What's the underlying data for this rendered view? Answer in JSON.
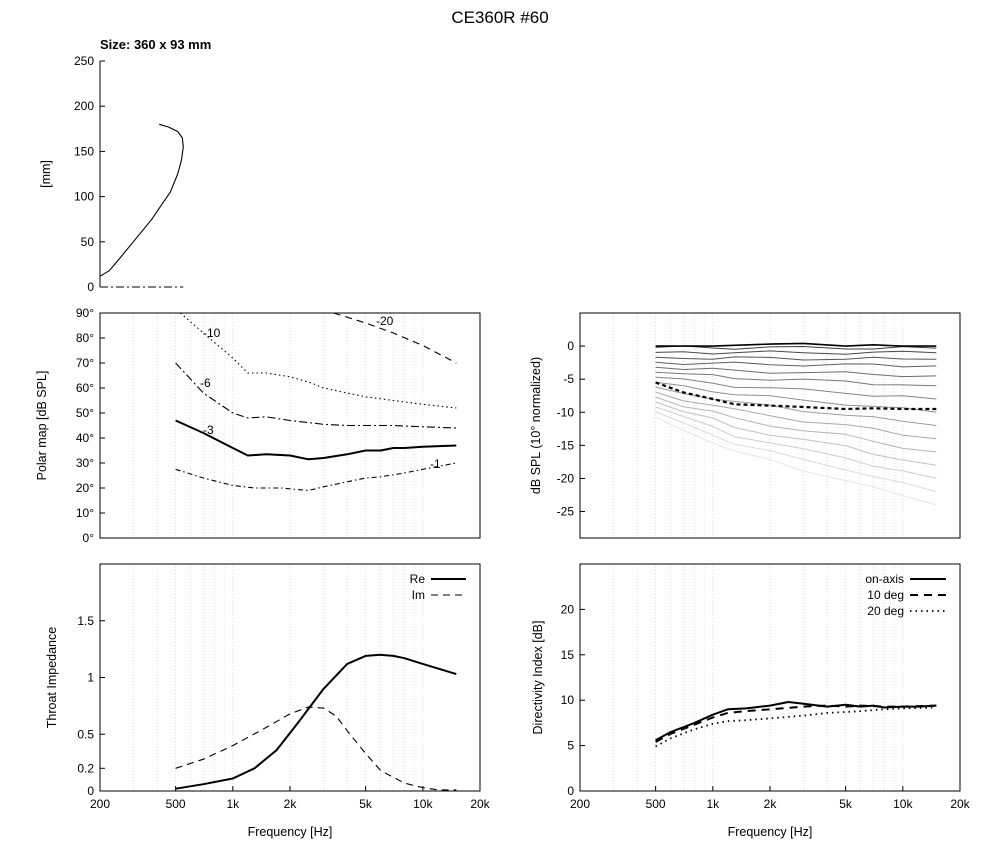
{
  "page": {
    "title": "CE360R #60"
  },
  "chart_data": [
    {
      "id": "profile",
      "type": "line",
      "subtitle": "Size: 360 x 93 mm",
      "xlabel": "",
      "ylabel": "[mm]",
      "ylim": [
        0,
        250
      ],
      "yticks": [
        0,
        50,
        100,
        150,
        200,
        250
      ],
      "series": [
        {
          "style": "solid",
          "x": [
            0,
            5,
            10,
            16,
            22,
            28,
            33,
            38,
            42,
            44,
            45,
            44.5,
            42,
            37,
            32
          ],
          "y": [
            12,
            18,
            30,
            45,
            60,
            75,
            90,
            105,
            125,
            140,
            155,
            165,
            172,
            177,
            180
          ]
        },
        {
          "style": "dashdot",
          "x": [
            0,
            45
          ],
          "y": [
            0,
            0
          ]
        }
      ]
    },
    {
      "id": "polar-map",
      "type": "line",
      "xscale": "log",
      "xlim": [
        200,
        20000
      ],
      "ylim": [
        0,
        90
      ],
      "ylabel": "Polar map [dB SPL]",
      "ytick_labels": [
        "0°",
        "10°",
        "20°",
        "30°",
        "40°",
        "50°",
        "60°",
        "70°",
        "80°",
        "90°"
      ],
      "series": [
        {
          "label": "-1",
          "style": "dashdot2",
          "x": [
            500,
            700,
            1000,
            1300,
            1800,
            2500,
            3000,
            4000,
            5000,
            6000,
            8000,
            10000,
            15000
          ],
          "y": [
            27.5,
            24,
            21,
            20,
            20,
            19,
            20.5,
            22.5,
            24,
            24.5,
            26,
            27.5,
            30
          ]
        },
        {
          "label": "-3",
          "style": "solid",
          "x": [
            500,
            700,
            1000,
            1200,
            1500,
            2000,
            2500,
            3000,
            4000,
            5000,
            6000,
            7000,
            8000,
            10000,
            15000
          ],
          "y": [
            47,
            42,
            36,
            33,
            33.5,
            33,
            31.5,
            32,
            33.5,
            35,
            35,
            36,
            36,
            36.5,
            37
          ]
        },
        {
          "label": "-6",
          "style": "dashdot",
          "x": [
            500,
            700,
            1000,
            1200,
            1500,
            2000,
            3000,
            4000,
            5000,
            7000,
            10000,
            15000
          ],
          "y": [
            70,
            58,
            50,
            48,
            48.5,
            47,
            45.5,
            45,
            45,
            45,
            44.5,
            44
          ]
        },
        {
          "label": "-10",
          "style": "dotted",
          "x": [
            530,
            700,
            1000,
            1200,
            1500,
            2000,
            2600,
            3000,
            4000,
            5000,
            7000,
            10000,
            15000
          ],
          "y": [
            90,
            82,
            72,
            66,
            66,
            64.5,
            62,
            60,
            58,
            56.5,
            55,
            53.5,
            52
          ]
        },
        {
          "label": "-20",
          "style": "dashed",
          "x": [
            3400,
            5000,
            7000,
            10000,
            15000
          ],
          "y": [
            90,
            86,
            82,
            77,
            70
          ]
        }
      ]
    },
    {
      "id": "normalized-spl",
      "type": "line",
      "xscale": "log",
      "xlim": [
        200,
        20000
      ],
      "ylim": [
        -29,
        5
      ],
      "ylabel": "dB SPL (10° normalized)",
      "yticks": [
        0,
        -5,
        -10,
        -15,
        -20,
        -25
      ],
      "series": [
        {
          "style": "solid",
          "x": [
            500,
            1000,
            2000,
            3000,
            5000,
            7000,
            10000,
            15000
          ],
          "y": [
            0,
            0,
            0.3,
            0.4,
            0,
            0.2,
            0,
            0
          ]
        },
        {
          "style": "dashed",
          "x": [
            500,
            700,
            1000,
            1300,
            2000,
            3000,
            5000,
            7000,
            10000,
            15000
          ],
          "y": [
            -5.5,
            -7,
            -8,
            -8.8,
            -9,
            -9.2,
            -9.5,
            -9.4,
            -9.5,
            -9.5
          ]
        }
      ],
      "gray_curves_end_db": [
        -0.3,
        -1,
        -2,
        -3,
        -4.5,
        -6,
        -8,
        -10,
        -12,
        -14,
        -16,
        -18,
        -20,
        -22,
        -24
      ]
    },
    {
      "id": "throat-impedance",
      "type": "line",
      "xscale": "log",
      "xlim": [
        200,
        20000
      ],
      "ylim": [
        0,
        2
      ],
      "ylabel": "Throat Impedance",
      "xlabel": "Frequency [Hz]",
      "yticks": [
        0,
        0.2,
        0.5,
        1,
        1.5
      ],
      "ytick_labels": [
        "0",
        "0.2",
        "0.5",
        "1",
        "1.5"
      ],
      "xtick_labels": [
        "200",
        "500",
        "1k",
        "2k",
        "5k",
        "10k",
        "20k"
      ],
      "legend": "top-right",
      "series": [
        {
          "name": "Re",
          "style": "solid",
          "x": [
            500,
            700,
            1000,
            1300,
            1700,
            2200,
            3000,
            4000,
            5000,
            6000,
            7000,
            8000,
            10000,
            12000,
            15000
          ],
          "y": [
            0.02,
            0.06,
            0.11,
            0.2,
            0.36,
            0.6,
            0.9,
            1.12,
            1.19,
            1.2,
            1.19,
            1.17,
            1.12,
            1.08,
            1.03
          ]
        },
        {
          "name": "Im",
          "style": "dashed",
          "x": [
            500,
            700,
            1000,
            1500,
            2000,
            2500,
            3000,
            3500,
            4000,
            5000,
            6000,
            8000,
            10000,
            12000,
            15000
          ],
          "y": [
            0.2,
            0.28,
            0.4,
            0.56,
            0.68,
            0.74,
            0.73,
            0.66,
            0.53,
            0.33,
            0.18,
            0.07,
            0.03,
            0.01,
            0.01
          ]
        }
      ]
    },
    {
      "id": "directivity-index",
      "type": "line",
      "xscale": "log",
      "xlim": [
        200,
        20000
      ],
      "ylim": [
        0,
        25
      ],
      "ylabel": "Directivity Index [dB]",
      "xlabel": "Frequency [Hz]",
      "yticks": [
        0,
        5,
        10,
        15,
        20
      ],
      "xtick_labels": [
        "200",
        "500",
        "1k",
        "2k",
        "5k",
        "10k",
        "20k"
      ],
      "legend": "top-right",
      "series": [
        {
          "name": "on-axis",
          "style": "solid",
          "x": [
            500,
            600,
            800,
            1000,
            1200,
            1500,
            2000,
            2500,
            3000,
            4000,
            5000,
            6000,
            7000,
            8000,
            10000,
            12000,
            15000
          ],
          "y": [
            5.6,
            6.5,
            7.5,
            8.4,
            9,
            9.1,
            9.4,
            9.8,
            9.6,
            9.3,
            9.5,
            9.3,
            9.4,
            9.2,
            9.3,
            9.3,
            9.4
          ]
        },
        {
          "name": "10 deg",
          "style": "dashed",
          "x": [
            500,
            600,
            800,
            1000,
            1200,
            1500,
            2000,
            3000,
            4000,
            5000,
            6000,
            8000,
            10000,
            15000
          ],
          "y": [
            5.4,
            6.3,
            7.3,
            8.1,
            8.6,
            8.8,
            9,
            9.3,
            9.4,
            9.3,
            9.4,
            9.3,
            9.3,
            9.4
          ]
        },
        {
          "name": "20 deg",
          "style": "dotted",
          "x": [
            500,
            600,
            800,
            1000,
            1200,
            1500,
            2000,
            3000,
            4000,
            5000,
            6000,
            8000,
            10000,
            15000
          ],
          "y": [
            4.9,
            5.8,
            6.8,
            7.4,
            7.7,
            7.8,
            8,
            8.3,
            8.6,
            8.7,
            8.8,
            9,
            9.1,
            9.2
          ]
        }
      ]
    }
  ]
}
